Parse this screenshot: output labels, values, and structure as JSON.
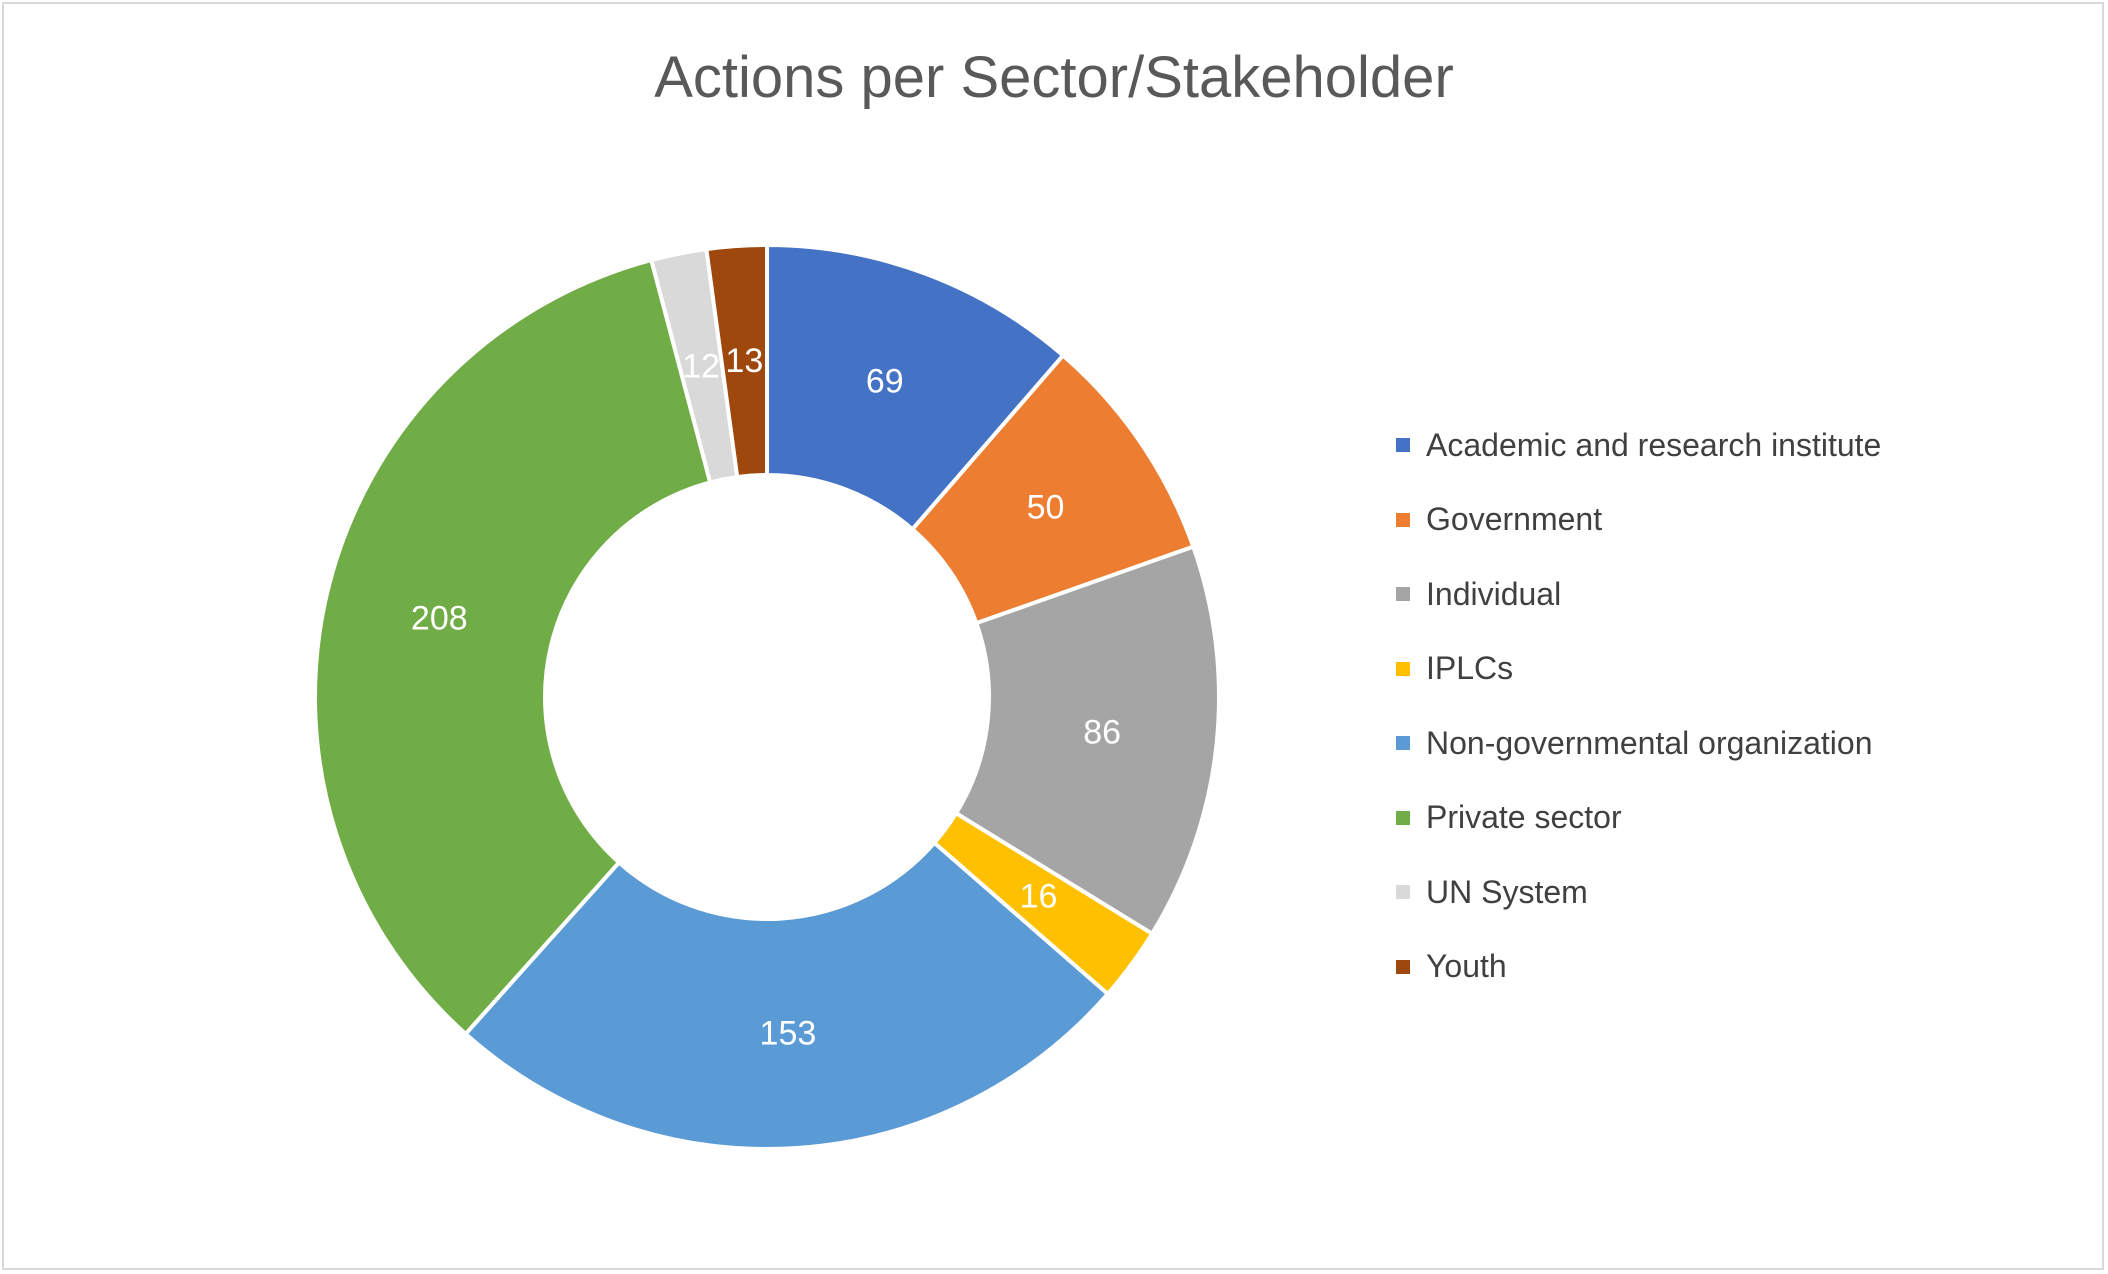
{
  "chart_data": {
    "type": "pie",
    "variant": "donut",
    "title": "Actions per Sector/Stakeholder",
    "legend_position": "right",
    "categories": [
      "Academic and research institute",
      "Government",
      "Individual",
      "IPLCs",
      "Non-governmental organization",
      "Private sector",
      "UN System",
      "Youth"
    ],
    "values": [
      69,
      50,
      86,
      16,
      153,
      208,
      12,
      13
    ],
    "colors": [
      "#4472C4",
      "#ED7D31",
      "#A5A5A5",
      "#FFC000",
      "#5B9BD5",
      "#70AD47",
      "#D9D9D9",
      "#9E480E"
    ],
    "data_labels": [
      "69",
      "50",
      "86",
      "16",
      "153",
      "208",
      "12",
      "13"
    ]
  }
}
